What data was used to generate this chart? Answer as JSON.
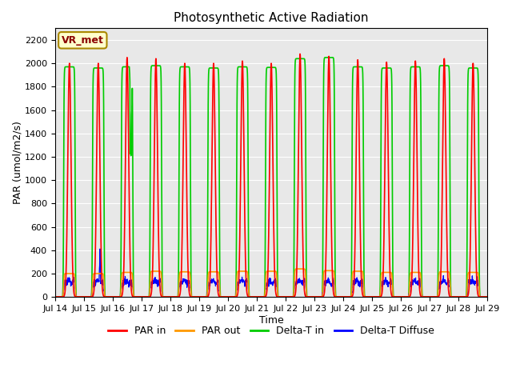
{
  "title": "Photosynthetic Active Radiation",
  "xlabel": "Time",
  "ylabel": "PAR (umol/m2/s)",
  "ylim": [
    0,
    2300
  ],
  "yticks": [
    0,
    200,
    400,
    600,
    800,
    1000,
    1200,
    1400,
    1600,
    1800,
    2000,
    2200
  ],
  "x_tick_labels": [
    "Jul 14",
    "Jul 15",
    "Jul 16",
    "Jul 17",
    "Jul 18",
    "Jul 19",
    "Jul 20",
    "Jul 21",
    "Jul 22",
    "Jul 23",
    "Jul 24",
    "Jul 25",
    "Jul 26",
    "Jul 27",
    "Jul 28",
    "Jul 29"
  ],
  "colors": {
    "par_in": "#ff0000",
    "par_out": "#ff9900",
    "delta_t_in": "#00cc00",
    "delta_t_diffuse": "#0000ff"
  },
  "background_color": "#e8e8e8",
  "annotation_box": "VR_met",
  "annotation_box_color": "#ffffcc",
  "annotation_box_border": "#aa8800"
}
